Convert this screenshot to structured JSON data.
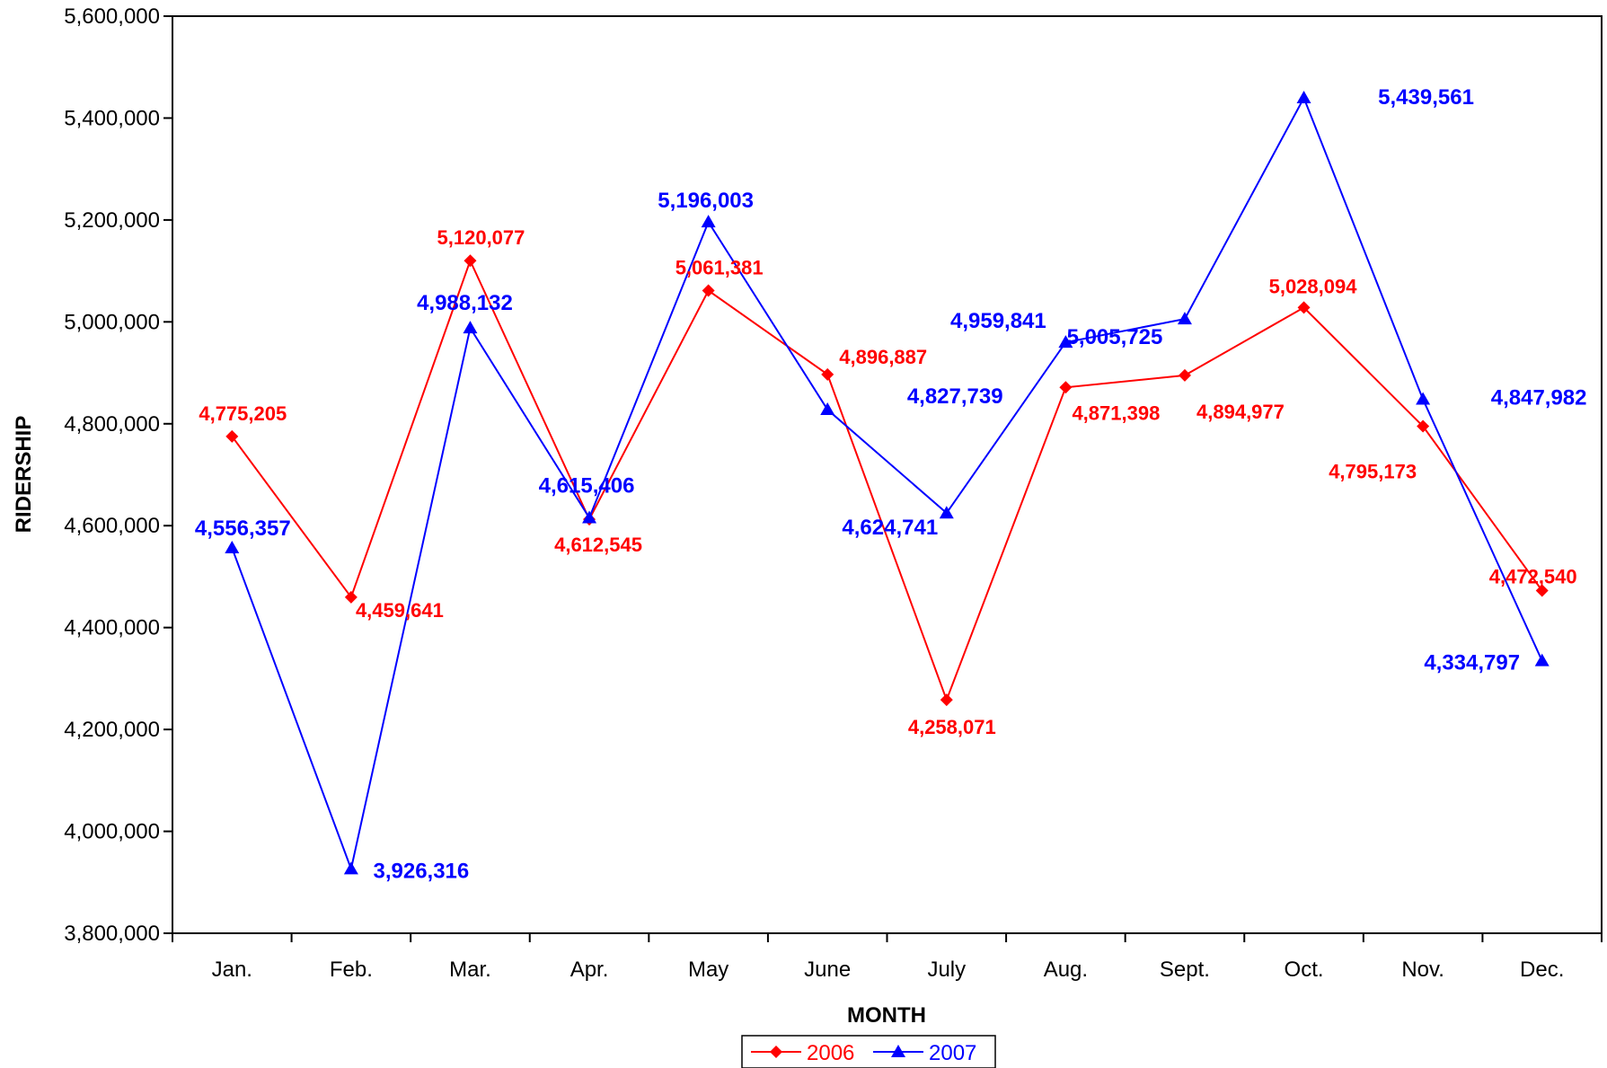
{
  "chart_data": {
    "type": "line",
    "title": "",
    "xlabel": "MONTH",
    "ylabel": "RIDERSHIP",
    "categories": [
      "Jan.",
      "Feb.",
      "Mar.",
      "Apr.",
      "May",
      "June",
      "July",
      "Aug.",
      "Sept.",
      "Oct.",
      "Nov.",
      "Dec."
    ],
    "ylim": [
      3800000,
      5600000
    ],
    "yticks": [
      3800000,
      4000000,
      4200000,
      4400000,
      4600000,
      4800000,
      5000000,
      5200000,
      5400000,
      5600000
    ],
    "ytick_labels": [
      "3,800,000",
      "4,000,000",
      "4,200,000",
      "4,400,000",
      "4,600,000",
      "4,800,000",
      "5,000,000",
      "5,200,000",
      "5,400,000",
      "5,600,000"
    ],
    "grid": false,
    "legend_position": "bottom-center",
    "series": [
      {
        "name": "2006",
        "color": "#ff0000",
        "marker": "diamond",
        "values": [
          4775205,
          4459641,
          5120077,
          4612545,
          5061381,
          4896887,
          4258071,
          4871398,
          4894977,
          5028094,
          4795173,
          4472540
        ],
        "labels": [
          "4,775,205",
          "4,459,641",
          "5,120,077",
          "4,612,545",
          "5,061,381",
          "4,896,887",
          "4,258,071",
          "4,871,398",
          "4,894,977",
          "5,028,094",
          "4,795,173",
          "4,472,540"
        ]
      },
      {
        "name": "2007",
        "color": "#0000ff",
        "marker": "triangle",
        "values": [
          4556357,
          3926316,
          4988132,
          4615406,
          5196003,
          4827739,
          4624741,
          4959841,
          5005725,
          5439561,
          4847982,
          4334797
        ],
        "labels": [
          "4,556,357",
          "3,926,316",
          "4,988,132",
          "4,615,406",
          "5,196,003",
          "4,827,739",
          "4,624,741",
          "4,959,841",
          "5,005,725",
          "5,439,561",
          "4,847,982",
          "4,334,797"
        ]
      }
    ]
  }
}
